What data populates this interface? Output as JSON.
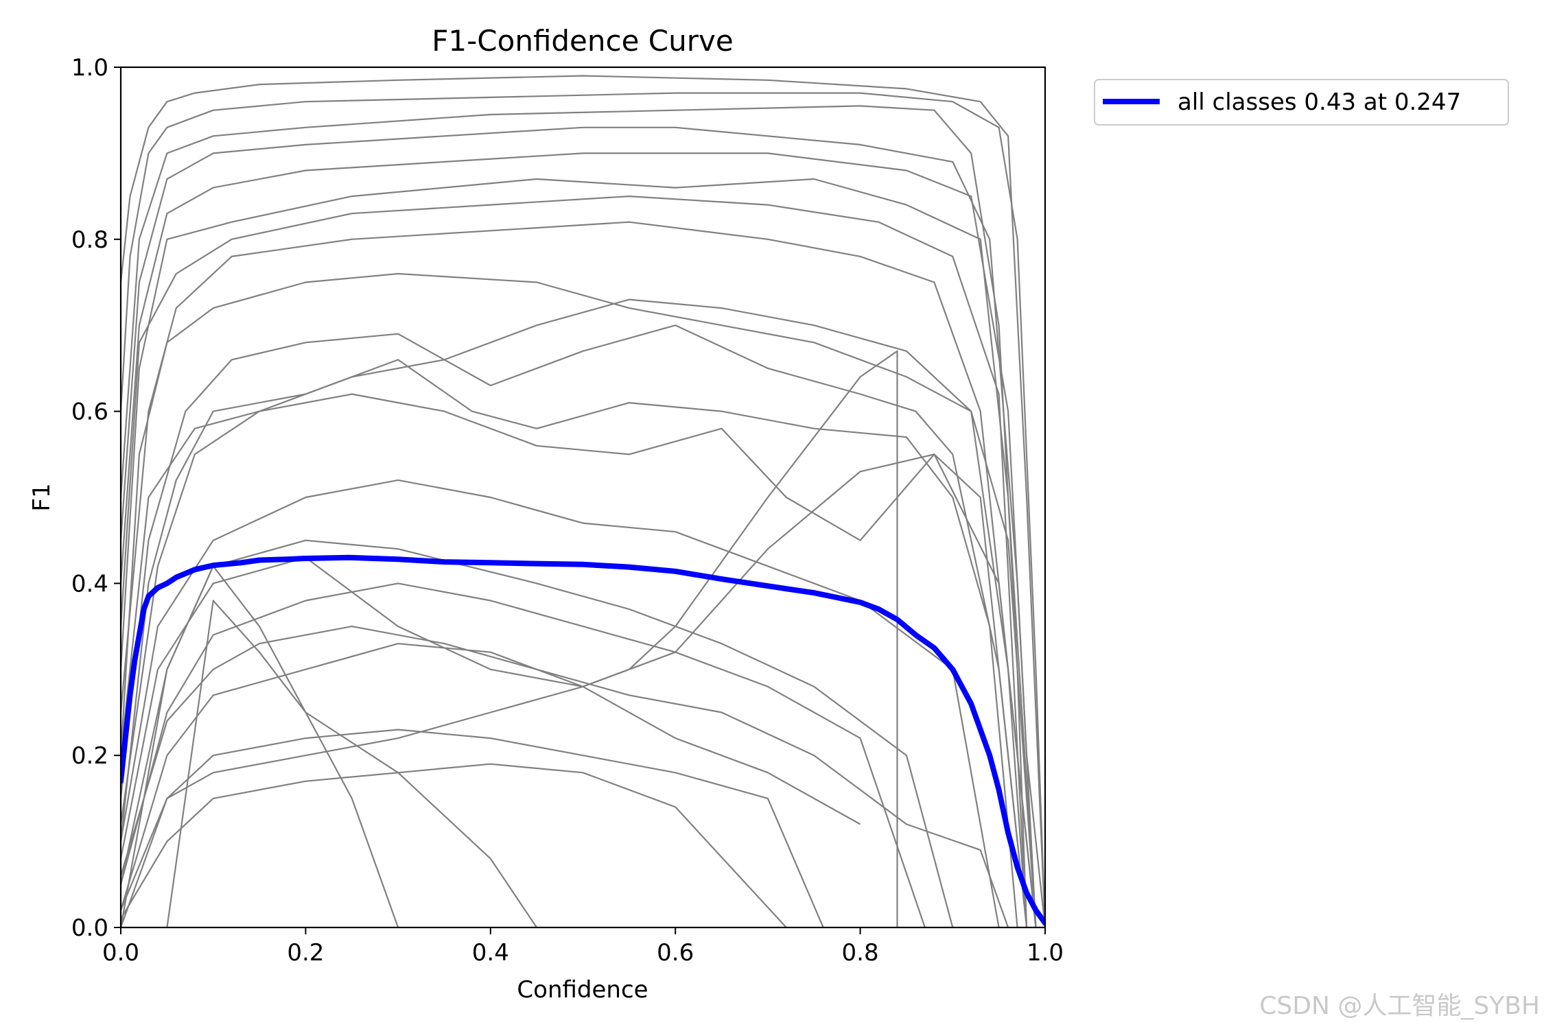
{
  "chart_data": {
    "type": "line",
    "title": "F1-Confidence Curve",
    "xlabel": "Confidence",
    "ylabel": "F1",
    "xlim": [
      0.0,
      1.0
    ],
    "ylim": [
      0.0,
      1.0
    ],
    "xticks": [
      "0.0",
      "0.2",
      "0.4",
      "0.6",
      "0.8",
      "1.0"
    ],
    "yticks": [
      "0.0",
      "0.2",
      "0.4",
      "0.6",
      "0.8",
      "1.0"
    ],
    "grid": false,
    "legend_position": "outside-top-right",
    "colors": {
      "class_curves": "#808080",
      "all_classes": "#0000ff"
    },
    "series": [
      {
        "name": "all classes 0.43 at 0.247",
        "emphasis": true,
        "x": [
          0.0,
          0.005,
          0.01,
          0.015,
          0.02,
          0.025,
          0.03,
          0.04,
          0.05,
          0.06,
          0.08,
          0.1,
          0.13,
          0.15,
          0.18,
          0.2,
          0.247,
          0.3,
          0.35,
          0.4,
          0.45,
          0.5,
          0.55,
          0.6,
          0.65,
          0.7,
          0.75,
          0.8,
          0.82,
          0.84,
          0.86,
          0.88,
          0.9,
          0.92,
          0.94,
          0.95,
          0.96,
          0.97,
          0.98,
          0.99,
          1.0
        ],
        "y": [
          0.17,
          0.22,
          0.27,
          0.31,
          0.34,
          0.37,
          0.385,
          0.395,
          0.4,
          0.407,
          0.416,
          0.421,
          0.424,
          0.427,
          0.428,
          0.429,
          0.43,
          0.428,
          0.425,
          0.424,
          0.423,
          0.422,
          0.419,
          0.414,
          0.405,
          0.397,
          0.389,
          0.378,
          0.37,
          0.358,
          0.34,
          0.325,
          0.3,
          0.26,
          0.2,
          0.16,
          0.11,
          0.07,
          0.04,
          0.02,
          0.005
        ]
      },
      {
        "x": [
          0.0,
          0.01,
          0.03,
          0.05,
          0.08,
          0.15,
          0.3,
          0.5,
          0.7,
          0.85,
          0.93,
          0.96,
          0.98,
          1.0
        ],
        "y": [
          0.75,
          0.85,
          0.93,
          0.96,
          0.97,
          0.98,
          0.985,
          0.99,
          0.985,
          0.975,
          0.96,
          0.92,
          0.5,
          0.0
        ]
      },
      {
        "x": [
          0.0,
          0.01,
          0.03,
          0.05,
          0.1,
          0.2,
          0.4,
          0.6,
          0.8,
          0.9,
          0.95,
          0.97,
          0.99,
          1.0
        ],
        "y": [
          0.6,
          0.78,
          0.9,
          0.93,
          0.95,
          0.96,
          0.965,
          0.97,
          0.97,
          0.96,
          0.93,
          0.8,
          0.3,
          0.0
        ]
      },
      {
        "x": [
          0.0,
          0.02,
          0.05,
          0.1,
          0.2,
          0.4,
          0.6,
          0.8,
          0.88,
          0.92,
          0.95,
          0.97,
          0.98
        ],
        "y": [
          0.5,
          0.8,
          0.9,
          0.92,
          0.93,
          0.945,
          0.95,
          0.955,
          0.95,
          0.9,
          0.7,
          0.3,
          0.0
        ]
      },
      {
        "x": [
          0.0,
          0.02,
          0.05,
          0.1,
          0.2,
          0.35,
          0.5,
          0.7,
          0.85,
          0.92,
          0.96,
          0.98,
          1.0
        ],
        "y": [
          0.4,
          0.7,
          0.83,
          0.86,
          0.88,
          0.89,
          0.9,
          0.9,
          0.88,
          0.85,
          0.6,
          0.2,
          0.0
        ]
      },
      {
        "x": [
          0.0,
          0.02,
          0.05,
          0.12,
          0.25,
          0.45,
          0.6,
          0.75,
          0.85,
          0.93,
          0.96,
          0.99
        ],
        "y": [
          0.3,
          0.65,
          0.8,
          0.82,
          0.85,
          0.87,
          0.86,
          0.87,
          0.84,
          0.8,
          0.5,
          0.0
        ]
      },
      {
        "x": [
          0.0,
          0.03,
          0.06,
          0.12,
          0.25,
          0.4,
          0.55,
          0.7,
          0.8,
          0.88,
          0.93,
          0.96,
          0.98
        ],
        "y": [
          0.25,
          0.6,
          0.72,
          0.78,
          0.8,
          0.81,
          0.82,
          0.8,
          0.78,
          0.75,
          0.6,
          0.3,
          0.0
        ]
      },
      {
        "x": [
          0.0,
          0.02,
          0.05,
          0.1,
          0.2,
          0.3,
          0.45,
          0.55,
          0.65,
          0.75,
          0.85,
          0.92,
          0.96,
          0.99
        ],
        "y": [
          0.2,
          0.55,
          0.68,
          0.72,
          0.75,
          0.76,
          0.75,
          0.72,
          0.7,
          0.68,
          0.64,
          0.6,
          0.3,
          0.0
        ]
      },
      {
        "x": [
          0.0,
          0.03,
          0.07,
          0.12,
          0.2,
          0.3,
          0.4,
          0.5,
          0.6,
          0.7,
          0.8,
          0.86,
          0.9,
          0.95,
          0.98
        ],
        "y": [
          0.15,
          0.45,
          0.6,
          0.66,
          0.68,
          0.69,
          0.63,
          0.67,
          0.7,
          0.65,
          0.62,
          0.6,
          0.55,
          0.3,
          0.0
        ]
      },
      {
        "x": [
          0.0,
          0.03,
          0.06,
          0.1,
          0.2,
          0.3,
          0.38,
          0.45,
          0.55,
          0.65,
          0.75,
          0.85,
          0.9,
          0.94,
          0.97
        ],
        "y": [
          0.1,
          0.4,
          0.52,
          0.6,
          0.62,
          0.66,
          0.6,
          0.58,
          0.61,
          0.6,
          0.58,
          0.57,
          0.5,
          0.35,
          0.0
        ]
      },
      {
        "x": [
          0.0,
          0.04,
          0.1,
          0.2,
          0.3,
          0.4,
          0.5,
          0.6,
          0.7,
          0.8,
          0.9,
          0.95
        ],
        "y": [
          0.1,
          0.35,
          0.45,
          0.5,
          0.52,
          0.5,
          0.47,
          0.46,
          0.42,
          0.38,
          0.3,
          0.0
        ]
      },
      {
        "x": [
          0.0,
          0.05,
          0.1,
          0.2,
          0.3,
          0.45,
          0.55,
          0.65,
          0.75,
          0.85,
          0.9
        ],
        "y": [
          0.05,
          0.3,
          0.42,
          0.45,
          0.44,
          0.4,
          0.37,
          0.33,
          0.28,
          0.2,
          0.0
        ]
      },
      {
        "x": [
          0.0,
          0.05,
          0.1,
          0.2,
          0.3,
          0.4,
          0.5,
          0.6,
          0.7,
          0.8,
          0.87
        ],
        "y": [
          0.05,
          0.25,
          0.34,
          0.38,
          0.4,
          0.38,
          0.35,
          0.32,
          0.28,
          0.22,
          0.0
        ]
      },
      {
        "x": [
          0.0,
          0.05,
          0.1,
          0.2,
          0.3,
          0.4,
          0.5,
          0.6,
          0.7,
          0.8
        ],
        "y": [
          0.02,
          0.2,
          0.27,
          0.3,
          0.33,
          0.32,
          0.28,
          0.22,
          0.18,
          0.12
        ]
      },
      {
        "x": [
          0.0,
          0.05,
          0.1,
          0.2,
          0.3,
          0.4,
          0.5,
          0.6,
          0.7,
          0.76
        ],
        "y": [
          0.02,
          0.15,
          0.2,
          0.22,
          0.23,
          0.22,
          0.2,
          0.18,
          0.15,
          0.0
        ]
      },
      {
        "x": [
          0.0,
          0.05,
          0.1,
          0.2,
          0.3,
          0.4,
          0.5,
          0.6,
          0.72
        ],
        "y": [
          0.01,
          0.1,
          0.15,
          0.17,
          0.18,
          0.19,
          0.18,
          0.14,
          0.0
        ]
      },
      {
        "x": [
          0.0,
          0.05,
          0.1,
          0.15,
          0.2,
          0.25,
          0.3
        ],
        "y": [
          0.0,
          0.3,
          0.42,
          0.35,
          0.25,
          0.15,
          0.0
        ]
      },
      {
        "x": [
          0.05,
          0.1,
          0.15,
          0.2,
          0.3,
          0.4,
          0.45
        ],
        "y": [
          0.0,
          0.38,
          0.32,
          0.25,
          0.18,
          0.08,
          0.0
        ]
      },
      {
        "x": [
          0.0,
          0.02,
          0.05,
          0.1,
          0.2,
          0.35,
          0.5,
          0.6,
          0.7,
          0.8,
          0.9,
          0.94,
          0.97,
          0.99
        ],
        "y": [
          0.45,
          0.75,
          0.87,
          0.9,
          0.91,
          0.92,
          0.93,
          0.93,
          0.92,
          0.91,
          0.89,
          0.8,
          0.4,
          0.0
        ]
      },
      {
        "x": [
          0.0,
          0.02,
          0.06,
          0.12,
          0.25,
          0.4,
          0.55,
          0.7,
          0.82,
          0.9,
          0.95,
          0.98
        ],
        "y": [
          0.35,
          0.68,
          0.76,
          0.8,
          0.83,
          0.84,
          0.85,
          0.84,
          0.82,
          0.78,
          0.62,
          0.0
        ]
      },
      {
        "x": [
          0.0,
          0.03,
          0.08,
          0.15,
          0.25,
          0.35,
          0.45,
          0.55,
          0.65,
          0.72,
          0.8,
          0.88,
          0.93,
          0.97
        ],
        "y": [
          0.2,
          0.5,
          0.58,
          0.6,
          0.62,
          0.6,
          0.56,
          0.55,
          0.58,
          0.5,
          0.45,
          0.55,
          0.5,
          0.1
        ]
      },
      {
        "x": [
          0.0,
          0.04,
          0.1,
          0.2,
          0.3,
          0.4,
          0.5,
          0.6,
          0.65,
          0.7,
          0.8,
          0.88,
          0.95,
          0.99
        ],
        "y": [
          0.08,
          0.3,
          0.4,
          0.43,
          0.35,
          0.3,
          0.28,
          0.32,
          0.38,
          0.44,
          0.53,
          0.55,
          0.4,
          0.0
        ]
      },
      {
        "x": [
          0.0,
          0.05,
          0.1,
          0.15,
          0.25,
          0.35,
          0.45,
          0.55,
          0.65,
          0.75,
          0.85,
          0.93,
          0.96
        ],
        "y": [
          0.06,
          0.24,
          0.3,
          0.33,
          0.35,
          0.33,
          0.3,
          0.27,
          0.25,
          0.2,
          0.12,
          0.09,
          0.0
        ]
      },
      {
        "x": [
          0.0,
          0.05,
          0.1,
          0.2,
          0.3,
          0.4,
          0.5,
          0.55,
          0.6,
          0.7,
          0.8,
          0.84,
          0.84
        ],
        "y": [
          0.0,
          0.15,
          0.18,
          0.2,
          0.22,
          0.25,
          0.28,
          0.3,
          0.35,
          0.5,
          0.64,
          0.67,
          0.0
        ]
      },
      {
        "x": [
          0.0,
          0.04,
          0.08,
          0.15,
          0.25,
          0.35,
          0.45,
          0.55,
          0.65,
          0.75,
          0.85,
          0.92,
          0.96,
          0.99
        ],
        "y": [
          0.12,
          0.42,
          0.55,
          0.6,
          0.64,
          0.66,
          0.7,
          0.73,
          0.72,
          0.7,
          0.67,
          0.6,
          0.45,
          0.0
        ]
      }
    ]
  },
  "watermark": "CSDN @人工智能_SYBH"
}
